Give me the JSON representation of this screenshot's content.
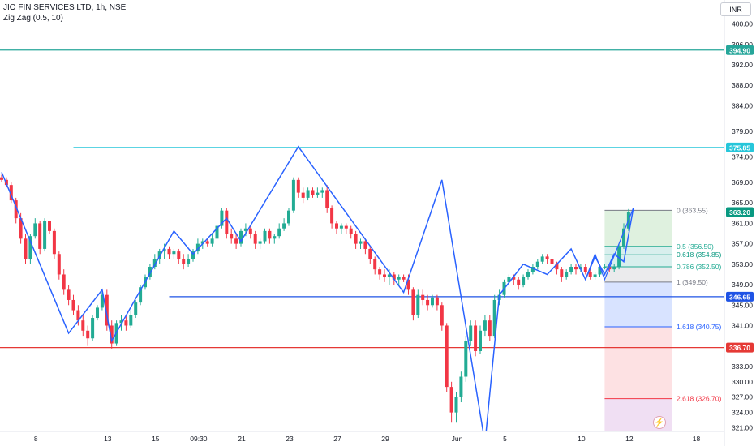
{
  "header": {
    "symbol": "JIO FIN SERVICES LTD, 1h, NSE",
    "indicator": "Zig Zag (0.5, 10)"
  },
  "currency_label": "INR",
  "colors": {
    "up": "#22ab94",
    "down": "#f23645",
    "zigzag": "#2962ff",
    "cyan_line": "#26c6da",
    "blue_line": "#1e53e5",
    "red_line": "#e53935",
    "teal_line": "#26a69a",
    "fib_gray": "#787b86"
  },
  "icons": {
    "lightning": "lightning-icon"
  },
  "chart_data": {
    "type": "candlestick",
    "y_axis": {
      "range": [
        319.5,
        402
      ],
      "ticks": [
        400.0,
        396.0,
        392.0,
        388.0,
        384.0,
        379.0,
        374.0,
        369.0,
        365.0,
        361.0,
        357.0,
        353.0,
        349.0,
        345.0,
        341.0,
        337.0,
        333.0,
        330.0,
        327.0,
        324.0,
        321.0
      ],
      "badges": [
        {
          "label": "394.90",
          "value": 394.9,
          "color": "#26a69a"
        },
        {
          "label": "375.85",
          "value": 375.85,
          "color": "#26c6da"
        },
        {
          "label": "363.20",
          "value": 363.2,
          "color": "#089981"
        },
        {
          "label": "346.65",
          "value": 346.65,
          "color": "#1e53e5"
        },
        {
          "label": "336.70",
          "value": 336.7,
          "color": "#e53935"
        }
      ]
    },
    "x_axis": {
      "count": 140,
      "labels": [
        {
          "label": "8",
          "i": 7
        },
        {
          "label": "13",
          "i": 22
        },
        {
          "label": "15",
          "i": 32
        },
        {
          "label": "09:30",
          "i": 41
        },
        {
          "label": "21",
          "i": 50
        },
        {
          "label": "23",
          "i": 60
        },
        {
          "label": "27",
          "i": 70
        },
        {
          "label": "29",
          "i": 80
        },
        {
          "label": "Jun",
          "i": 95
        },
        {
          "label": "5",
          "i": 105
        },
        {
          "label": "10",
          "i": 121
        },
        {
          "label": "12",
          "i": 131
        },
        {
          "label": "18",
          "i": 145
        }
      ]
    },
    "horizontal_lines": [
      {
        "value": 394.9,
        "start_i": -2,
        "color": "#26a69a"
      },
      {
        "value": 375.85,
        "start_i": 15,
        "color": "#26c6da"
      },
      {
        "value": 346.65,
        "start_i": 35,
        "color": "#1e53e5"
      },
      {
        "value": 336.7,
        "start_i": -2,
        "color": "#e53935"
      }
    ],
    "candles": [
      [
        370,
        370.5,
        369,
        369.5
      ],
      [
        369.5,
        370,
        368,
        368.5
      ],
      [
        368.5,
        369,
        365,
        365.5
      ],
      [
        365.5,
        366,
        361,
        362
      ],
      [
        362,
        363,
        357,
        358
      ],
      [
        358,
        359,
        353,
        354
      ],
      [
        354,
        359,
        353,
        358.5
      ],
      [
        358.5,
        362,
        358,
        361
      ],
      [
        361,
        361.5,
        355,
        356
      ],
      [
        356,
        362,
        355.5,
        361.5
      ],
      [
        361.5,
        361.5,
        359,
        359.5
      ],
      [
        359.5,
        360,
        354,
        355
      ],
      [
        355,
        355.5,
        350,
        351
      ],
      [
        351,
        352,
        347,
        348
      ],
      [
        348,
        349,
        345,
        346
      ],
      [
        346,
        347,
        343,
        344
      ],
      [
        344,
        345,
        341,
        342
      ],
      [
        342,
        343,
        339,
        340
      ],
      [
        340,
        341,
        337,
        338.5
      ],
      [
        338.5,
        343,
        338,
        342.5
      ],
      [
        342.5,
        345,
        342,
        344.5
      ],
      [
        344.5,
        348,
        344,
        347
      ],
      [
        347,
        348,
        340,
        341
      ],
      [
        341,
        342,
        336.5,
        337.5
      ],
      [
        337.5,
        342,
        337,
        341.5
      ],
      [
        341.5,
        343,
        340,
        342
      ],
      [
        342,
        343,
        340,
        341
      ],
      [
        341,
        344,
        340.5,
        343
      ],
      [
        343,
        346,
        342.5,
        345.5
      ],
      [
        345.5,
        349,
        345,
        348.5
      ],
      [
        348.5,
        351,
        348,
        350.5
      ],
      [
        350.5,
        353,
        350,
        352.5
      ],
      [
        352.5,
        355,
        352,
        354
      ],
      [
        354,
        356,
        353,
        355.5
      ],
      [
        355.5,
        357,
        354,
        356
      ],
      [
        356,
        356.5,
        354,
        355
      ],
      [
        355,
        356,
        354,
        355.5
      ],
      [
        355.5,
        356,
        353,
        354
      ],
      [
        354,
        355,
        352,
        353
      ],
      [
        353,
        355,
        352.5,
        354
      ],
      [
        354,
        356,
        353.5,
        355.5
      ],
      [
        355.5,
        358,
        355,
        357
      ],
      [
        357,
        358,
        356,
        357.5
      ],
      [
        357.5,
        358,
        356.5,
        357
      ],
      [
        357,
        359,
        356.5,
        358
      ],
      [
        358,
        361,
        357.5,
        360.5
      ],
      [
        360.5,
        364,
        360,
        363.5
      ],
      [
        363.5,
        364,
        358,
        359
      ],
      [
        359,
        360,
        357,
        358
      ],
      [
        358,
        359,
        356,
        357
      ],
      [
        357,
        360,
        356.5,
        359.5
      ],
      [
        359.5,
        361,
        358.5,
        360
      ],
      [
        360,
        360.5,
        358,
        359
      ],
      [
        359,
        359.5,
        356,
        357
      ],
      [
        357,
        358,
        356,
        357.5
      ],
      [
        357.5,
        360,
        357,
        359.5
      ],
      [
        359.5,
        360,
        357,
        358
      ],
      [
        358,
        359,
        357,
        358.5
      ],
      [
        358.5,
        361,
        358,
        360
      ],
      [
        360,
        362,
        359.5,
        361
      ],
      [
        361,
        364,
        360.5,
        363.5
      ],
      [
        363.5,
        370,
        363,
        369.5
      ],
      [
        369.5,
        370,
        366,
        367
      ],
      [
        367,
        368,
        365,
        366
      ],
      [
        366,
        368,
        365.5,
        367.5
      ],
      [
        367.5,
        368,
        366,
        366.5
      ],
      [
        366.5,
        368,
        366,
        367
      ],
      [
        367,
        368,
        366,
        367.5
      ],
      [
        367.5,
        368.5,
        363,
        364
      ],
      [
        364,
        364.5,
        360,
        361
      ],
      [
        361,
        361.5,
        359,
        360
      ],
      [
        360,
        361,
        359,
        360.5
      ],
      [
        360.5,
        361,
        359,
        360
      ],
      [
        360,
        360.5,
        358,
        359
      ],
      [
        359,
        359.5,
        356,
        357
      ],
      [
        357,
        358,
        356,
        357.5
      ],
      [
        357.5,
        358,
        355,
        356
      ],
      [
        356,
        356.5,
        353,
        354
      ],
      [
        354,
        354.5,
        351,
        352
      ],
      [
        352,
        352.5,
        350,
        351
      ],
      [
        351,
        352,
        349.5,
        350.5
      ],
      [
        350.5,
        352,
        349,
        351
      ],
      [
        351,
        351.5,
        349,
        350
      ],
      [
        350,
        351,
        349,
        350.5
      ],
      [
        350.5,
        351,
        349.5,
        350
      ],
      [
        350,
        351,
        347,
        348
      ],
      [
        348,
        348.5,
        342,
        343
      ],
      [
        343,
        348,
        342.5,
        347
      ],
      [
        347,
        348,
        345,
        346
      ],
      [
        346,
        347,
        344,
        345
      ],
      [
        345,
        347,
        344.5,
        346.5
      ],
      [
        346.5,
        347,
        344,
        345
      ],
      [
        345,
        345.5,
        340,
        341
      ],
      [
        341,
        341.5,
        328,
        329
      ],
      [
        329,
        330,
        322,
        324
      ],
      [
        324,
        328,
        322,
        327
      ],
      [
        327,
        332,
        326,
        331
      ],
      [
        331,
        339,
        330,
        338
      ],
      [
        338,
        342,
        337,
        341
      ],
      [
        341,
        342,
        335,
        336
      ],
      [
        336,
        341,
        335.5,
        340
      ],
      [
        340,
        343,
        339,
        342
      ],
      [
        342,
        343,
        338,
        339
      ],
      [
        339,
        347,
        338.5,
        346
      ],
      [
        346,
        348,
        345,
        347
      ],
      [
        347,
        350,
        346.5,
        349.5
      ],
      [
        349.5,
        351,
        349,
        350.5
      ],
      [
        350.5,
        351,
        349,
        350
      ],
      [
        350,
        350.5,
        348,
        349
      ],
      [
        349,
        351,
        348.5,
        350.5
      ],
      [
        350.5,
        352,
        350,
        351.5
      ],
      [
        351.5,
        353,
        351,
        352.5
      ],
      [
        352.5,
        354,
        352,
        353.5
      ],
      [
        353.5,
        355,
        353,
        354.5
      ],
      [
        354.5,
        355,
        353,
        354
      ],
      [
        354,
        354.5,
        352,
        353
      ],
      [
        353,
        353.5,
        351,
        352
      ],
      [
        352,
        352.5,
        349.5,
        350.5
      ],
      [
        350.5,
        352,
        350,
        351.5
      ],
      [
        351.5,
        353,
        351,
        352.5
      ],
      [
        352.5,
        353,
        351,
        352
      ],
      [
        352,
        353,
        351.5,
        352.5
      ],
      [
        352.5,
        353,
        351,
        351.5
      ],
      [
        351.5,
        352,
        350,
        350.5
      ],
      [
        350.5,
        351.5,
        350,
        351
      ],
      [
        351,
        353,
        350.5,
        352.5
      ],
      [
        352.5,
        353,
        352,
        352.5
      ],
      [
        352.5,
        353,
        351.5,
        352
      ],
      [
        352,
        353,
        351.5,
        352.5
      ],
      [
        352.5,
        357,
        352,
        356.5
      ],
      [
        356.5,
        361,
        356,
        360
      ],
      [
        360,
        363.8,
        359.5,
        363.2
      ]
    ],
    "zigzag": [
      [
        0,
        371
      ],
      [
        14,
        339.5
      ],
      [
        21,
        348
      ],
      [
        23,
        338
      ],
      [
        36,
        359.5
      ],
      [
        40,
        355
      ],
      [
        47,
        362
      ],
      [
        50,
        357.5
      ],
      [
        62,
        376
      ],
      [
        84,
        347.5
      ],
      [
        92,
        369.5
      ],
      [
        101,
        318
      ],
      [
        104,
        347
      ],
      [
        109,
        353
      ],
      [
        114,
        351
      ],
      [
        119,
        356
      ],
      [
        122,
        350
      ],
      [
        124,
        354.5
      ],
      [
        126,
        351
      ],
      [
        128,
        355
      ],
      [
        130,
        353.5
      ],
      [
        132,
        364
      ]
    ],
    "zigzag_secondary": [
      [
        122,
        350
      ],
      [
        124,
        355
      ],
      [
        126,
        350
      ],
      [
        132,
        364
      ]
    ],
    "fibonacci": {
      "start_i": 126,
      "end_i": 140,
      "levels": [
        {
          "ratio": "0",
          "value": 363.55,
          "label": "0 (363.55)",
          "color": "#787b86"
        },
        {
          "ratio": "0.5",
          "value": 356.5,
          "label": "0.5 (356.50)",
          "color": "#22ab94"
        },
        {
          "ratio": "0.618",
          "value": 354.85,
          "label": "0.618 (354.85)",
          "color": "#089981"
        },
        {
          "ratio": "0.786",
          "value": 352.5,
          "label": "0.786 (352.50)",
          "color": "#22ab94"
        },
        {
          "ratio": "1",
          "value": 349.5,
          "label": "1 (349.50)",
          "color": "#787b86"
        },
        {
          "ratio": "1.618",
          "value": 340.75,
          "label": "1.618 (340.75)",
          "color": "#2962ff"
        },
        {
          "ratio": "2.618",
          "value": 326.7,
          "label": "2.618 (326.70)",
          "color": "#f23645"
        }
      ]
    },
    "fib_zones": [
      {
        "from": 363.55,
        "to": 356.5,
        "color": "rgba(76,175,80,0.18)"
      },
      {
        "from": 356.5,
        "to": 352.5,
        "color": "rgba(38,166,154,0.18)"
      },
      {
        "from": 352.5,
        "to": 349.5,
        "color": "rgba(120,123,134,0.15)"
      },
      {
        "from": 349.5,
        "to": 340.75,
        "color": "rgba(41,98,255,0.18)"
      },
      {
        "from": 340.75,
        "to": 326.7,
        "color": "rgba(242,54,69,0.15)"
      },
      {
        "from": 326.7,
        "to": 319.5,
        "color": "rgba(156,39,176,0.15)"
      }
    ],
    "dotted_price": 363.2
  }
}
